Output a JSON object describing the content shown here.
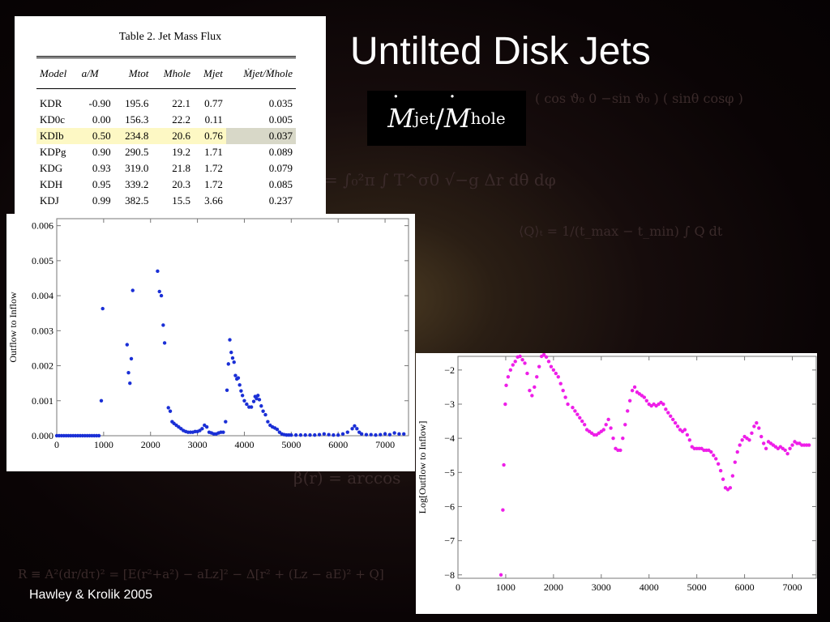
{
  "slide": {
    "title": "Untilted Disk Jets",
    "formula": {
      "numerator": "M",
      "numerator_sub": "jet",
      "slash": "/",
      "denominator": "M",
      "denominator_sub": "hole"
    },
    "attribution": "Hawley & Krolik 2005"
  },
  "table": {
    "caption": "Table 2.   Jet Mass Flux",
    "headers": [
      "Model",
      "a/M",
      "Mtot",
      "Mhole",
      "Mjet",
      "Ṁjet/Ṁhole"
    ],
    "rows": [
      [
        "KDR",
        "-0.90",
        "195.6",
        "22.1",
        "0.77",
        "0.035"
      ],
      [
        "KD0c",
        "0.00",
        "156.3",
        "22.2",
        "0.11",
        "0.005"
      ],
      [
        "KDIb",
        "0.50",
        "234.8",
        "20.6",
        "0.76",
        "0.037"
      ],
      [
        "KDPg",
        "0.90",
        "290.5",
        "19.2",
        "1.71",
        "0.089"
      ],
      [
        "KDG",
        "0.93",
        "319.0",
        "21.8",
        "1.72",
        "0.079"
      ],
      [
        "KDH",
        "0.95",
        "339.2",
        "20.3",
        "1.72",
        "0.085"
      ],
      [
        "KDJ",
        "0.99",
        "382.5",
        "15.5",
        "3.66",
        "0.237"
      ]
    ],
    "highlight_row": 2
  },
  "chart_data": [
    {
      "type": "scatter",
      "ylabel": "Outflow to Inflow",
      "xlim": [
        0,
        7500
      ],
      "ylim": [
        0,
        0.0062
      ],
      "xticks": [
        0,
        1000,
        2000,
        3000,
        4000,
        5000,
        6000,
        7000
      ],
      "yticks": [
        0.0,
        0.001,
        0.002,
        0.003,
        0.004,
        0.005,
        0.006
      ],
      "ytick_labels": [
        "0.000",
        "0.001",
        "0.002",
        "0.003",
        "0.004",
        "0.005",
        "0.006"
      ],
      "color": "#1a2fd6",
      "points": [
        [
          0,
          0
        ],
        [
          50,
          0
        ],
        [
          100,
          0
        ],
        [
          150,
          0
        ],
        [
          200,
          0
        ],
        [
          250,
          0
        ],
        [
          300,
          0
        ],
        [
          350,
          0
        ],
        [
          400,
          0
        ],
        [
          450,
          0
        ],
        [
          500,
          0
        ],
        [
          550,
          0
        ],
        [
          600,
          0
        ],
        [
          650,
          0
        ],
        [
          700,
          0
        ],
        [
          750,
          0
        ],
        [
          800,
          0
        ],
        [
          850,
          0
        ],
        [
          900,
          0
        ],
        [
          950,
          0.001
        ],
        [
          980,
          0.00363
        ],
        [
          1500,
          0.0026
        ],
        [
          1530,
          0.0018
        ],
        [
          1560,
          0.0015
        ],
        [
          1590,
          0.0022
        ],
        [
          1620,
          0.00415
        ],
        [
          2150,
          0.0047
        ],
        [
          2190,
          0.00412
        ],
        [
          2230,
          0.004
        ],
        [
          2270,
          0.00316
        ],
        [
          2300,
          0.00265
        ],
        [
          2380,
          0.0008
        ],
        [
          2420,
          0.0007
        ],
        [
          2460,
          0.0004
        ],
        [
          2500,
          0.00035
        ],
        [
          2550,
          0.0003
        ],
        [
          2600,
          0.00025
        ],
        [
          2650,
          0.0002
        ],
        [
          2700,
          0.00015
        ],
        [
          2750,
          0.00012
        ],
        [
          2800,
          0.0001
        ],
        [
          2850,
          0.0001
        ],
        [
          2900,
          0.0001
        ],
        [
          2950,
          0.00012
        ],
        [
          3000,
          0.00012
        ],
        [
          3050,
          0.00015
        ],
        [
          3100,
          0.0002
        ],
        [
          3150,
          0.0003
        ],
        [
          3200,
          0.00025
        ],
        [
          3250,
          0.0001
        ],
        [
          3300,
          8e-05
        ],
        [
          3350,
          5e-05
        ],
        [
          3400,
          5e-05
        ],
        [
          3450,
          8e-05
        ],
        [
          3500,
          0.0001
        ],
        [
          3550,
          0.0001
        ],
        [
          3600,
          0.0004
        ],
        [
          3630,
          0.0013
        ],
        [
          3660,
          0.00205
        ],
        [
          3690,
          0.00274
        ],
        [
          3720,
          0.00238
        ],
        [
          3750,
          0.00222
        ],
        [
          3780,
          0.0021
        ],
        [
          3810,
          0.00172
        ],
        [
          3840,
          0.00162
        ],
        [
          3870,
          0.00165
        ],
        [
          3900,
          0.00145
        ],
        [
          3930,
          0.00128
        ],
        [
          3960,
          0.00115
        ],
        [
          4000,
          0.001
        ],
        [
          4050,
          0.0009
        ],
        [
          4100,
          0.00082
        ],
        [
          4150,
          0.00082
        ],
        [
          4200,
          0.00098
        ],
        [
          4230,
          0.00112
        ],
        [
          4260,
          0.00106
        ],
        [
          4290,
          0.00115
        ],
        [
          4320,
          0.00103
        ],
        [
          4360,
          0.00085
        ],
        [
          4400,
          0.0007
        ],
        [
          4450,
          0.0006
        ],
        [
          4500,
          0.0004
        ],
        [
          4550,
          0.0003
        ],
        [
          4600,
          0.00025
        ],
        [
          4650,
          0.00022
        ],
        [
          4700,
          0.00018
        ],
        [
          4750,
          0.0001
        ],
        [
          4800,
          5e-05
        ],
        [
          4850,
          3e-05
        ],
        [
          4900,
          2e-05
        ],
        [
          4950,
          2e-05
        ],
        [
          5000,
          2e-05
        ],
        [
          5100,
          2e-05
        ],
        [
          5200,
          2e-05
        ],
        [
          5300,
          2e-05
        ],
        [
          5400,
          2e-05
        ],
        [
          5500,
          2e-05
        ],
        [
          5600,
          3e-05
        ],
        [
          5700,
          5e-05
        ],
        [
          5800,
          3e-05
        ],
        [
          5900,
          2e-05
        ],
        [
          6000,
          2e-05
        ],
        [
          6100,
          5e-05
        ],
        [
          6200,
          0.0001
        ],
        [
          6300,
          0.0002
        ],
        [
          6350,
          0.00028
        ],
        [
          6400,
          0.0002
        ],
        [
          6450,
          0.0001
        ],
        [
          6500,
          5e-05
        ],
        [
          6600,
          3e-05
        ],
        [
          6700,
          3e-05
        ],
        [
          6800,
          2e-05
        ],
        [
          6900,
          3e-05
        ],
        [
          7000,
          5e-05
        ],
        [
          7100,
          3e-05
        ],
        [
          7200,
          8e-05
        ],
        [
          7300,
          5e-05
        ],
        [
          7400,
          5e-05
        ]
      ]
    },
    {
      "type": "scatter",
      "ylabel": "Log[Outflow to Inflow]",
      "xlim": [
        0,
        7500
      ],
      "ylim": [
        -8.1,
        -1.6
      ],
      "xticks": [
        0,
        1000,
        2000,
        3000,
        4000,
        5000,
        6000,
        7000
      ],
      "yticks": [
        -8,
        -7,
        -6,
        -5,
        -4,
        -3,
        -2
      ],
      "ytick_labels": [
        "−8",
        "−7",
        "−6",
        "−5",
        "−4",
        "−3",
        "−2"
      ],
      "color": "#ee1ee8",
      "points": [
        [
          900,
          -8.0
        ],
        [
          940,
          -6.1
        ],
        [
          960,
          -4.78
        ],
        [
          990,
          -3.0
        ],
        [
          1010,
          -2.45
        ],
        [
          1050,
          -2.2
        ],
        [
          1100,
          -2.0
        ],
        [
          1150,
          -1.85
        ],
        [
          1200,
          -1.75
        ],
        [
          1250,
          -1.62
        ],
        [
          1300,
          -1.6
        ],
        [
          1350,
          -1.7
        ],
        [
          1400,
          -1.8
        ],
        [
          1450,
          -2.1
        ],
        [
          1500,
          -2.6
        ],
        [
          1550,
          -2.75
        ],
        [
          1600,
          -2.5
        ],
        [
          1650,
          -2.2
        ],
        [
          1700,
          -1.9
        ],
        [
          1750,
          -1.6
        ],
        [
          1800,
          -1.55
        ],
        [
          1850,
          -1.62
        ],
        [
          1900,
          -1.75
        ],
        [
          1950,
          -1.9
        ],
        [
          2000,
          -2.0
        ],
        [
          2050,
          -2.1
        ],
        [
          2100,
          -2.2
        ],
        [
          2150,
          -2.4
        ],
        [
          2200,
          -2.6
        ],
        [
          2250,
          -2.8
        ],
        [
          2300,
          -3.0
        ],
        [
          2400,
          -3.1
        ],
        [
          2450,
          -3.2
        ],
        [
          2500,
          -3.3
        ],
        [
          2550,
          -3.4
        ],
        [
          2600,
          -3.5
        ],
        [
          2650,
          -3.6
        ],
        [
          2700,
          -3.75
        ],
        [
          2750,
          -3.8
        ],
        [
          2800,
          -3.85
        ],
        [
          2850,
          -3.9
        ],
        [
          2900,
          -3.9
        ],
        [
          2950,
          -3.85
        ],
        [
          3000,
          -3.8
        ],
        [
          3050,
          -3.75
        ],
        [
          3100,
          -3.6
        ],
        [
          3150,
          -3.45
        ],
        [
          3200,
          -3.7
        ],
        [
          3250,
          -4.0
        ],
        [
          3300,
          -4.3
        ],
        [
          3350,
          -4.35
        ],
        [
          3400,
          -4.35
        ],
        [
          3450,
          -4.0
        ],
        [
          3500,
          -3.6
        ],
        [
          3550,
          -3.2
        ],
        [
          3600,
          -2.9
        ],
        [
          3650,
          -2.6
        ],
        [
          3700,
          -2.5
        ],
        [
          3750,
          -2.65
        ],
        [
          3800,
          -2.7
        ],
        [
          3850,
          -2.75
        ],
        [
          3900,
          -2.8
        ],
        [
          3950,
          -2.9
        ],
        [
          4000,
          -3.0
        ],
        [
          4050,
          -3.05
        ],
        [
          4100,
          -3.0
        ],
        [
          4150,
          -3.05
        ],
        [
          4200,
          -3.0
        ],
        [
          4250,
          -2.95
        ],
        [
          4300,
          -3.0
        ],
        [
          4350,
          -3.15
        ],
        [
          4400,
          -3.25
        ],
        [
          4450,
          -3.35
        ],
        [
          4500,
          -3.45
        ],
        [
          4550,
          -3.55
        ],
        [
          4600,
          -3.65
        ],
        [
          4650,
          -3.75
        ],
        [
          4700,
          -3.8
        ],
        [
          4750,
          -3.75
        ],
        [
          4800,
          -3.9
        ],
        [
          4850,
          -4.05
        ],
        [
          4900,
          -4.25
        ],
        [
          4950,
          -4.3
        ],
        [
          5000,
          -4.3
        ],
        [
          5050,
          -4.3
        ],
        [
          5100,
          -4.3
        ],
        [
          5150,
          -4.35
        ],
        [
          5200,
          -4.35
        ],
        [
          5250,
          -4.35
        ],
        [
          5300,
          -4.4
        ],
        [
          5350,
          -4.5
        ],
        [
          5400,
          -4.6
        ],
        [
          5450,
          -4.75
        ],
        [
          5500,
          -4.95
        ],
        [
          5550,
          -5.2
        ],
        [
          5600,
          -5.45
        ],
        [
          5650,
          -5.5
        ],
        [
          5700,
          -5.45
        ],
        [
          5750,
          -5.1
        ],
        [
          5800,
          -4.7
        ],
        [
          5850,
          -4.4
        ],
        [
          5900,
          -4.2
        ],
        [
          5950,
          -4.05
        ],
        [
          6000,
          -3.95
        ],
        [
          6050,
          -4.0
        ],
        [
          6100,
          -4.05
        ],
        [
          6150,
          -3.85
        ],
        [
          6200,
          -3.65
        ],
        [
          6250,
          -3.55
        ],
        [
          6300,
          -3.7
        ],
        [
          6350,
          -3.95
        ],
        [
          6400,
          -4.15
        ],
        [
          6450,
          -4.3
        ],
        [
          6500,
          -4.1
        ],
        [
          6550,
          -4.15
        ],
        [
          6600,
          -4.2
        ],
        [
          6650,
          -4.25
        ],
        [
          6700,
          -4.3
        ],
        [
          6750,
          -4.25
        ],
        [
          6800,
          -4.3
        ],
        [
          6850,
          -4.35
        ],
        [
          6900,
          -4.45
        ],
        [
          6950,
          -4.3
        ],
        [
          7000,
          -4.2
        ],
        [
          7050,
          -4.1
        ],
        [
          7100,
          -4.15
        ],
        [
          7150,
          -4.15
        ],
        [
          7200,
          -4.2
        ],
        [
          7250,
          -4.2
        ],
        [
          7300,
          -4.2
        ],
        [
          7350,
          -4.2
        ]
      ]
    }
  ]
}
